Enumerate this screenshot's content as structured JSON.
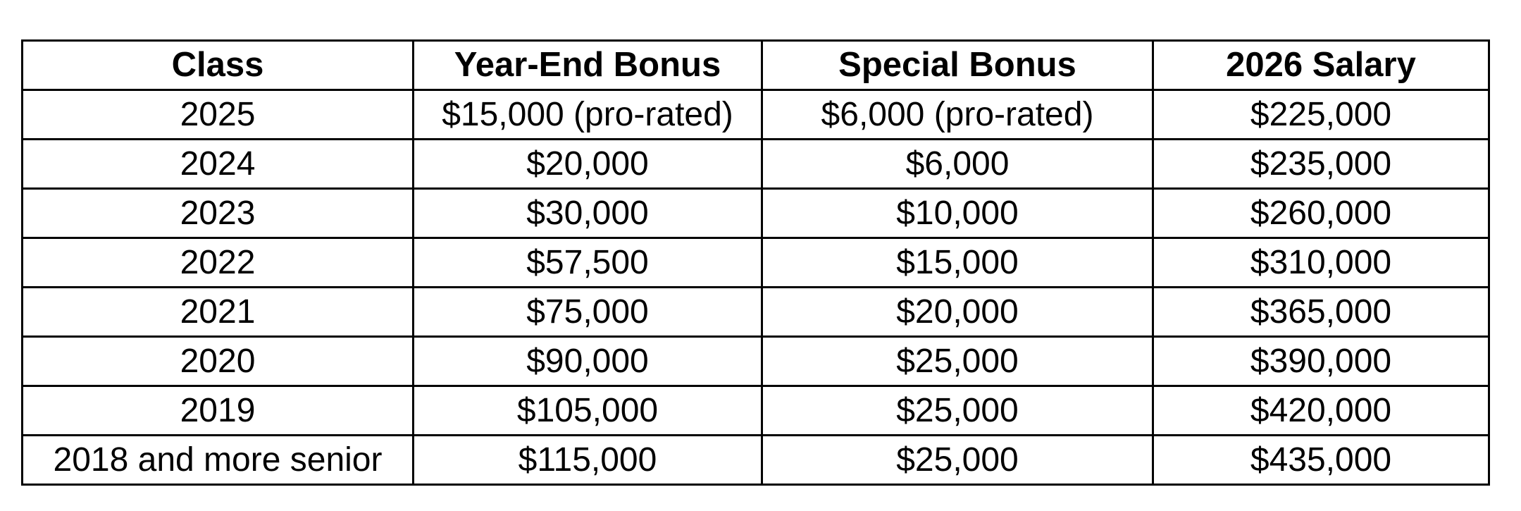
{
  "table": {
    "columns": [
      "Class",
      "Year-End Bonus",
      "Special Bonus",
      "2026 Salary"
    ],
    "rows": [
      [
        "2025",
        "$15,000 (pro-rated)",
        "$6,000 (pro-rated)",
        "$225,000"
      ],
      [
        "2024",
        "$20,000",
        "$6,000",
        "$235,000"
      ],
      [
        "2023",
        "$30,000",
        "$10,000",
        "$260,000"
      ],
      [
        "2022",
        "$57,500",
        "$15,000",
        "$310,000"
      ],
      [
        "2021",
        "$75,000",
        "$20,000",
        "$365,000"
      ],
      [
        "2020",
        "$90,000",
        "$25,000",
        "$390,000"
      ],
      [
        "2019",
        "$105,000",
        "$25,000",
        "$420,000"
      ],
      [
        "2018 and more senior",
        "$115,000",
        "$25,000",
        "$435,000"
      ]
    ],
    "colors": {
      "border": "#000000",
      "text": "#000000",
      "background": "#ffffff"
    }
  }
}
